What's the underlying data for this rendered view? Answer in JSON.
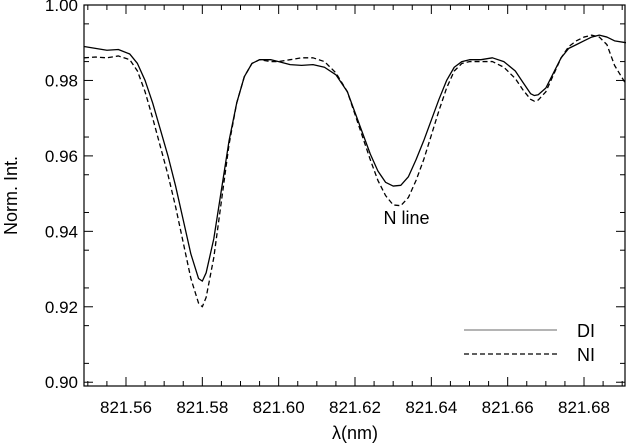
{
  "chart_data": {
    "type": "line",
    "xlabel": "λ(nm)",
    "ylabel": "Norm. Int.",
    "xlim": [
      821.549,
      821.691
    ],
    "ylim": [
      0.899,
      1.0
    ],
    "xticks": [
      821.56,
      821.58,
      821.6,
      821.62,
      821.64,
      821.66,
      821.68
    ],
    "xtick_labels": [
      "821.56",
      "821.58",
      "821.60",
      "821.62",
      "821.64",
      "821.66",
      "821.68"
    ],
    "yticks": [
      0.9,
      0.92,
      0.94,
      0.96,
      0.98,
      1.0
    ],
    "ytick_labels": [
      "0.90",
      "0.92",
      "0.94",
      "0.96",
      "0.98",
      "1.00"
    ],
    "grid": false,
    "legend": "bottom-right",
    "annotations": [
      {
        "text": "N line",
        "x": 821.6335,
        "y": 0.942
      }
    ],
    "series": [
      {
        "name": "DI",
        "style": "solid",
        "color": "#000000",
        "points": [
          [
            821.549,
            0.989
          ],
          [
            821.552,
            0.9885
          ],
          [
            821.555,
            0.988
          ],
          [
            821.558,
            0.9882
          ],
          [
            821.561,
            0.987
          ],
          [
            821.563,
            0.9845
          ],
          [
            821.565,
            0.98
          ],
          [
            821.567,
            0.974
          ],
          [
            821.569,
            0.967
          ],
          [
            821.571,
            0.96
          ],
          [
            821.573,
            0.952
          ],
          [
            821.575,
            0.943
          ],
          [
            821.577,
            0.934
          ],
          [
            821.579,
            0.9275
          ],
          [
            821.58,
            0.9268
          ],
          [
            821.581,
            0.929
          ],
          [
            821.583,
            0.938
          ],
          [
            821.585,
            0.951
          ],
          [
            821.587,
            0.964
          ],
          [
            821.589,
            0.974
          ],
          [
            821.591,
            0.981
          ],
          [
            821.593,
            0.9845
          ],
          [
            821.595,
            0.9855
          ],
          [
            821.598,
            0.9855
          ],
          [
            821.6,
            0.985
          ],
          [
            821.603,
            0.9842
          ],
          [
            821.606,
            0.984
          ],
          [
            821.609,
            0.9842
          ],
          [
            821.612,
            0.9835
          ],
          [
            821.615,
            0.9815
          ],
          [
            821.618,
            0.977
          ],
          [
            821.62,
            0.9715
          ],
          [
            821.622,
            0.966
          ],
          [
            821.624,
            0.9605
          ],
          [
            821.626,
            0.956
          ],
          [
            821.628,
            0.953
          ],
          [
            821.63,
            0.952
          ],
          [
            821.632,
            0.9522
          ],
          [
            821.634,
            0.9545
          ],
          [
            821.636,
            0.959
          ],
          [
            821.638,
            0.964
          ],
          [
            821.64,
            0.9695
          ],
          [
            821.642,
            0.975
          ],
          [
            821.644,
            0.98
          ],
          [
            821.646,
            0.9835
          ],
          [
            821.648,
            0.985
          ],
          [
            821.65,
            0.9855
          ],
          [
            821.653,
            0.9855
          ],
          [
            821.656,
            0.986
          ],
          [
            821.659,
            0.985
          ],
          [
            821.662,
            0.9825
          ],
          [
            821.664,
            0.9795
          ],
          [
            821.666,
            0.9765
          ],
          [
            821.667,
            0.976
          ],
          [
            821.668,
            0.9762
          ],
          [
            821.67,
            0.978
          ],
          [
            821.672,
            0.982
          ],
          [
            821.674,
            0.986
          ],
          [
            821.676,
            0.9885
          ],
          [
            821.678,
            0.9895
          ],
          [
            821.68,
            0.9905
          ],
          [
            821.682,
            0.9915
          ],
          [
            821.684,
            0.992
          ],
          [
            821.686,
            0.9915
          ],
          [
            821.688,
            0.9905
          ],
          [
            821.691,
            0.99
          ]
        ]
      },
      {
        "name": "NI",
        "style": "dashed",
        "color": "#000000",
        "points": [
          [
            821.549,
            0.986
          ],
          [
            821.552,
            0.9862
          ],
          [
            821.555,
            0.986
          ],
          [
            821.558,
            0.9865
          ],
          [
            821.561,
            0.9855
          ],
          [
            821.563,
            0.9825
          ],
          [
            821.565,
            0.977
          ],
          [
            821.567,
            0.97
          ],
          [
            821.569,
            0.9625
          ],
          [
            821.571,
            0.955
          ],
          [
            821.573,
            0.9465
          ],
          [
            821.575,
            0.937
          ],
          [
            821.577,
            0.9275
          ],
          [
            821.579,
            0.921
          ],
          [
            821.58,
            0.92
          ],
          [
            821.581,
            0.9225
          ],
          [
            821.583,
            0.933
          ],
          [
            821.585,
            0.948
          ],
          [
            821.587,
            0.963
          ],
          [
            821.589,
            0.974
          ],
          [
            821.591,
            0.981
          ],
          [
            821.593,
            0.9845
          ],
          [
            821.595,
            0.9855
          ],
          [
            821.598,
            0.985
          ],
          [
            821.6,
            0.985
          ],
          [
            821.603,
            0.9855
          ],
          [
            821.606,
            0.986
          ],
          [
            821.609,
            0.986
          ],
          [
            821.612,
            0.985
          ],
          [
            821.615,
            0.982
          ],
          [
            821.618,
            0.977
          ],
          [
            821.62,
            0.971
          ],
          [
            821.622,
            0.965
          ],
          [
            821.624,
            0.959
          ],
          [
            821.626,
            0.9535
          ],
          [
            821.628,
            0.9495
          ],
          [
            821.63,
            0.947
          ],
          [
            821.632,
            0.9468
          ],
          [
            821.634,
            0.949
          ],
          [
            821.636,
            0.9535
          ],
          [
            821.638,
            0.959
          ],
          [
            821.64,
            0.9655
          ],
          [
            821.642,
            0.972
          ],
          [
            821.644,
            0.978
          ],
          [
            821.646,
            0.9825
          ],
          [
            821.648,
            0.9845
          ],
          [
            821.65,
            0.985
          ],
          [
            821.653,
            0.985
          ],
          [
            821.656,
            0.985
          ],
          [
            821.659,
            0.9835
          ],
          [
            821.662,
            0.9805
          ],
          [
            821.664,
            0.9775
          ],
          [
            821.666,
            0.975
          ],
          [
            821.667,
            0.9745
          ],
          [
            821.668,
            0.9748
          ],
          [
            821.67,
            0.977
          ],
          [
            821.672,
            0.9815
          ],
          [
            821.674,
            0.986
          ],
          [
            821.676,
            0.989
          ],
          [
            821.678,
            0.9905
          ],
          [
            821.68,
            0.9915
          ],
          [
            821.682,
            0.992
          ],
          [
            821.684,
            0.9915
          ],
          [
            821.686,
            0.9895
          ],
          [
            821.688,
            0.984
          ],
          [
            821.691,
            0.979
          ]
        ]
      }
    ]
  }
}
